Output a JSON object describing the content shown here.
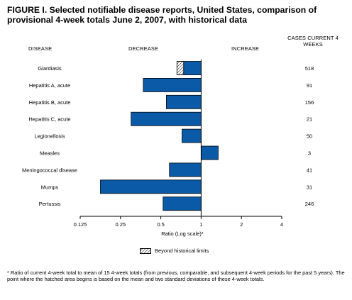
{
  "title": "FIGURE I. Selected notifiable disease reports, United States, comparison of provisional 4-week totals June 2, 2007, with historical data",
  "headers": {
    "disease": "DISEASE",
    "decrease": "DECREASE",
    "increase": "INCREASE",
    "cases": "CASES CURRENT 4 WEEKS"
  },
  "legend": {
    "label": "Beyond historical limits"
  },
  "footnote": "* Ratio of current 4-week total to mean of 15 4-week totals (from previous, comparable, and subsequent 4-week periods for the past 5 years). The point where the hatched area begins is based on the mean and two standard deviations of these 4-week totals.",
  "colors": {
    "bar": "#0a5aa8",
    "bar_edge": "#000000",
    "hatch": "#000000"
  },
  "chart_data": {
    "type": "bar",
    "orientation": "horizontal",
    "x_scale": "log2",
    "xlim": [
      0.125,
      4
    ],
    "xlabel": "Ratio (Log scale)*",
    "xticks": [
      0.125,
      0.25,
      0.5,
      1,
      2,
      4
    ],
    "xtick_labels": [
      "0.125",
      "0.25",
      "0.5",
      "1",
      "2",
      "4"
    ],
    "reference_line": 1,
    "categories": [
      "Giardiasis",
      "Hepatitis A, acute",
      "Hepatitis B, acute",
      "Hepatitis C, acute",
      "Legionellosis",
      "Measles",
      "Meningococcal disease",
      "Mumps",
      "Pertussis"
    ],
    "values": [
      0.66,
      0.37,
      0.55,
      0.3,
      0.72,
      1.34,
      0.58,
      0.177,
      0.52
    ],
    "beyond_limits_start": [
      0.74,
      null,
      null,
      null,
      null,
      null,
      null,
      null,
      null
    ],
    "cases": [
      "518",
      "91",
      "156",
      "21",
      "50",
      "3",
      "41",
      "31",
      "246"
    ]
  }
}
